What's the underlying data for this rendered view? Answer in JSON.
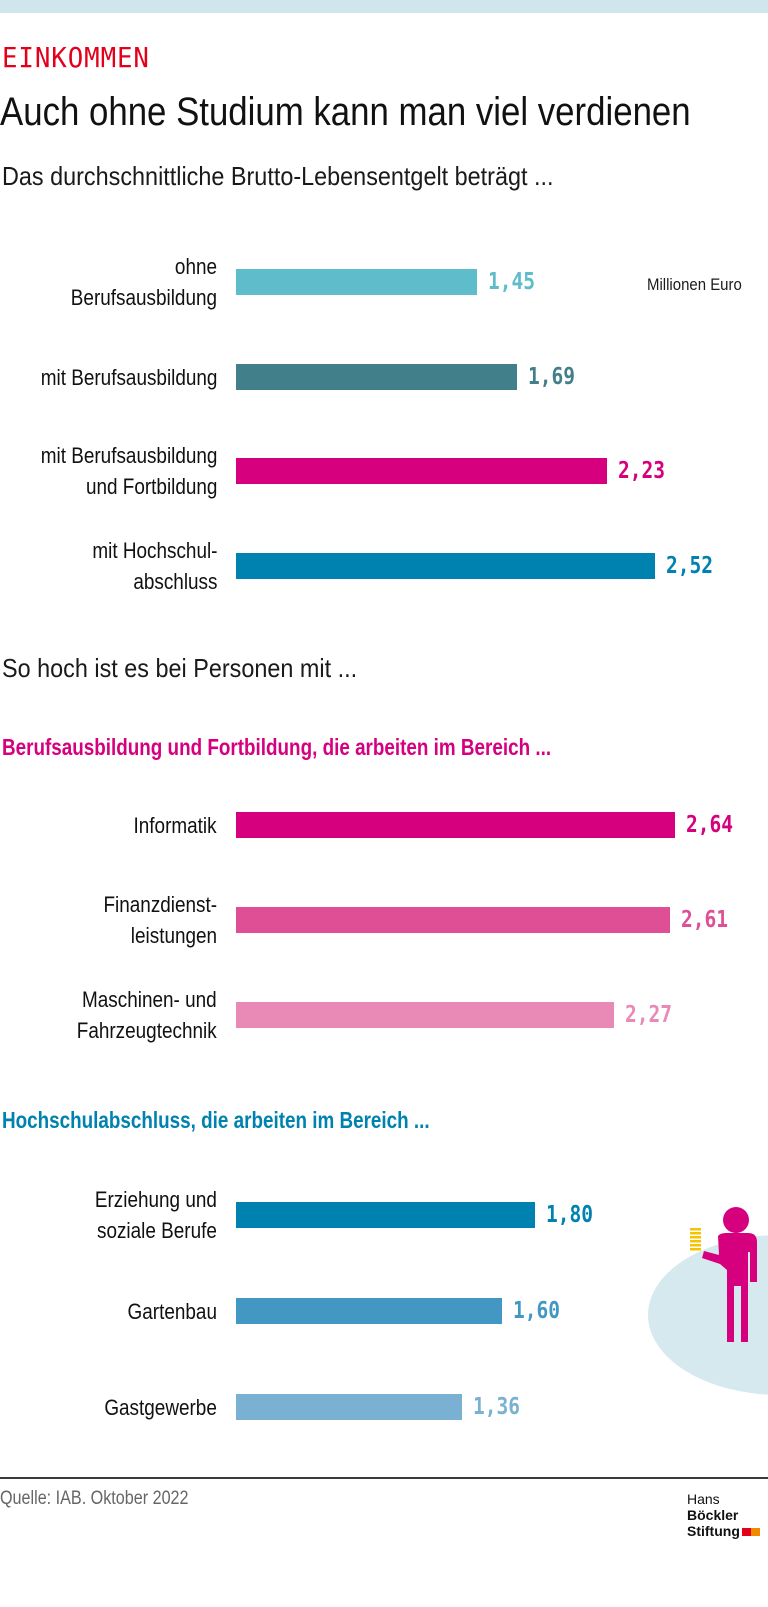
{
  "header": {
    "kicker": "EINKOMMEN",
    "title": "Auch ohne Studium kann man viel verdienen",
    "subtitle": "Das durchschnittliche Brutto-Lebensentgelt beträgt ..."
  },
  "section2_intro": "So hoch ist es bei Personen mit ...",
  "footer": {
    "source": "Quelle: IAB. Oktober 2022",
    "logo_line1_regular": "Hans",
    "logo_line1_bold": "Böckler",
    "logo_line2": "Stiftung"
  },
  "colors": {
    "kicker": "#e3001b",
    "magenta": "#d6007e",
    "blue": "#0082b0"
  },
  "illustration": "person-holding-coins-icon",
  "chart_data": [
    {
      "type": "bar",
      "orientation": "horizontal",
      "title": "Das durchschnittliche Brutto-Lebensentgelt beträgt ...",
      "unit_label": "Millionen Euro",
      "categories": [
        "ohne\nBerufsausbildung",
        "mit Berufsausbildung",
        "mit Berufsausbildung\nund Fortbildung",
        "mit Hochschul-\nabschluss"
      ],
      "values": [
        1.45,
        1.69,
        2.23,
        2.52
      ],
      "value_labels": [
        "1,45",
        "1,69",
        "2,23",
        "2,52"
      ],
      "colors": [
        "#5fbccb",
        "#41808a",
        "#d6007e",
        "#0082b0"
      ],
      "xlim": [
        0,
        2.64
      ],
      "grid": false
    },
    {
      "type": "bar",
      "orientation": "horizontal",
      "title": "Berufsausbildung und Fortbildung, die arbeiten im Bereich ...",
      "title_color": "#d6007e",
      "categories": [
        "Informatik",
        "Finanzdienst-\nleistungen",
        "Maschinen- und\nFahrzeugtechnik"
      ],
      "values": [
        2.64,
        2.61,
        2.27
      ],
      "value_labels": [
        "2,64",
        "2,61",
        "2,27"
      ],
      "colors": [
        "#d6007e",
        "#df4f95",
        "#e889b6"
      ],
      "xlim": [
        0,
        2.64
      ],
      "grid": false
    },
    {
      "type": "bar",
      "orientation": "horizontal",
      "title": "Hochschulabschluss, die arbeiten im Bereich ...",
      "title_color": "#0082b0",
      "categories": [
        "Erziehung und\nsoziale Berufe",
        "Gartenbau",
        "Gastgewerbe"
      ],
      "values": [
        1.8,
        1.6,
        1.36
      ],
      "value_labels": [
        "1,80",
        "1,60",
        "1,36"
      ],
      "colors": [
        "#0082b0",
        "#4298c3",
        "#7ab1d3"
      ],
      "xlim": [
        0,
        2.64
      ],
      "grid": false
    }
  ]
}
